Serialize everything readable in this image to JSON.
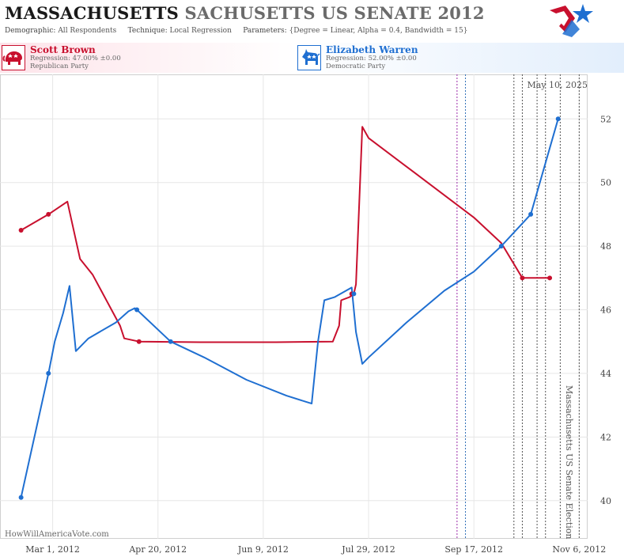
{
  "header": {
    "title_state": "MASSACHUSETTS",
    "title_rest": "SACHUSETTS US SENATE 2012",
    "demographic_label": "Demographic:",
    "demographic_value": "All Respondents",
    "technique_label": "Technique:",
    "technique_value": "Local Regression",
    "parameters_label": "Parameters:",
    "parameters_value": "{Degree = Linear, Alpha = 0.4, Bandwidth = 15}"
  },
  "candidates": {
    "republican": {
      "name": "Scott Brown",
      "regression": "Regression: 47.00% ±0.00",
      "party": "Republican Party",
      "color": "#c8102e"
    },
    "democrat": {
      "name": "Elizabeth Warren",
      "regression": "Regression: 52.00% ±0.00",
      "party": "Democratic Party",
      "color": "#1f6fd1"
    }
  },
  "chart_data": {
    "type": "line",
    "date_stamp": "May 10, 2025",
    "watermark": "HowWillAmericaVote.com",
    "event_label": "Massachusetts US Senate Election",
    "x_ticks": [
      "2012-03-01",
      "2012-04-20",
      "2012-06-09",
      "2012-07-29",
      "2012-09-17",
      "2012-11-06"
    ],
    "x_tick_labels": [
      "Mar 1, 2012",
      "Apr 20, 2012",
      "Jun 9, 2012",
      "Jul 29, 2012",
      "Sep 17, 2012",
      "Nov 6, 2012"
    ],
    "xlim": [
      "2012-02-05",
      "2012-11-10"
    ],
    "y_ticks": [
      40,
      42,
      44,
      46,
      48,
      50,
      52
    ],
    "ylim": [
      38.8,
      53.4
    ],
    "grid": true,
    "y_axis_side": "right",
    "vertical_markers": [
      {
        "date": "2012-09-09",
        "color": "#9b2aa8"
      },
      {
        "date": "2012-09-13",
        "color": "#2f6fb8"
      },
      {
        "date": "2012-10-06",
        "color": "#555555"
      },
      {
        "date": "2012-10-10",
        "color": "#555555"
      },
      {
        "date": "2012-10-17",
        "color": "#555555"
      },
      {
        "date": "2012-10-21",
        "color": "#555555"
      },
      {
        "date": "2012-10-28",
        "color": "#555555"
      },
      {
        "date": "2012-11-06",
        "color": "#555555"
      }
    ],
    "series": [
      {
        "name": "Scott Brown",
        "color": "#c8102e",
        "points": [
          [
            "2012-02-15",
            48.5
          ],
          [
            "2012-02-28",
            49.0
          ],
          [
            "2012-04-11",
            45.0
          ],
          [
            "2012-07-21",
            46.5
          ],
          [
            "2012-10-10",
            47.0
          ],
          [
            "2012-10-23",
            47.0
          ]
        ],
        "line": [
          [
            "2012-02-15",
            48.5
          ],
          [
            "2012-02-28",
            49.0
          ],
          [
            "2012-03-08",
            49.4
          ],
          [
            "2012-03-14",
            47.6
          ],
          [
            "2012-03-20",
            47.1
          ],
          [
            "2012-04-02",
            45.5
          ],
          [
            "2012-04-04",
            45.1
          ],
          [
            "2012-04-11",
            45.0
          ],
          [
            "2012-05-10",
            44.98
          ],
          [
            "2012-06-15",
            44.98
          ],
          [
            "2012-07-12",
            45.0
          ],
          [
            "2012-07-15",
            45.5
          ],
          [
            "2012-07-16",
            46.3
          ],
          [
            "2012-07-20",
            46.4
          ],
          [
            "2012-07-22",
            46.5
          ],
          [
            "2012-07-23",
            46.8
          ],
          [
            "2012-07-26",
            51.75
          ],
          [
            "2012-07-29",
            51.4
          ],
          [
            "2012-08-20",
            50.3
          ],
          [
            "2012-09-17",
            48.9
          ],
          [
            "2012-09-30",
            48.1
          ],
          [
            "2012-10-10",
            47.0
          ],
          [
            "2012-10-23",
            47.0
          ]
        ]
      },
      {
        "name": "Elizabeth Warren",
        "color": "#1f6fd1",
        "points": [
          [
            "2012-02-15",
            40.1
          ],
          [
            "2012-02-28",
            44.0
          ],
          [
            "2012-04-10",
            46.0
          ],
          [
            "2012-04-26",
            45.0
          ],
          [
            "2012-07-22",
            46.5
          ],
          [
            "2012-09-30",
            48.0
          ],
          [
            "2012-10-14",
            49.0
          ],
          [
            "2012-10-27",
            52.0
          ]
        ],
        "line": [
          [
            "2012-02-15",
            40.1
          ],
          [
            "2012-02-28",
            44.0
          ],
          [
            "2012-03-02",
            45.0
          ],
          [
            "2012-03-06",
            45.9
          ],
          [
            "2012-03-09",
            46.75
          ],
          [
            "2012-03-12",
            44.7
          ],
          [
            "2012-03-18",
            45.1
          ],
          [
            "2012-03-31",
            45.6
          ],
          [
            "2012-04-06",
            45.95
          ],
          [
            "2012-04-09",
            46.05
          ],
          [
            "2012-04-10",
            46.0
          ],
          [
            "2012-04-26",
            45.0
          ],
          [
            "2012-05-12",
            44.5
          ],
          [
            "2012-06-01",
            43.8
          ],
          [
            "2012-06-20",
            43.3
          ],
          [
            "2012-07-02",
            43.05
          ],
          [
            "2012-07-05",
            45.0
          ],
          [
            "2012-07-08",
            46.3
          ],
          [
            "2012-07-13",
            46.4
          ],
          [
            "2012-07-21",
            46.7
          ],
          [
            "2012-07-23",
            45.3
          ],
          [
            "2012-07-26",
            44.3
          ],
          [
            "2012-07-29",
            44.5
          ],
          [
            "2012-08-16",
            45.6
          ],
          [
            "2012-09-03",
            46.6
          ],
          [
            "2012-09-17",
            47.2
          ],
          [
            "2012-09-30",
            48.0
          ],
          [
            "2012-10-14",
            49.0
          ],
          [
            "2012-10-27",
            52.0
          ]
        ]
      }
    ]
  }
}
